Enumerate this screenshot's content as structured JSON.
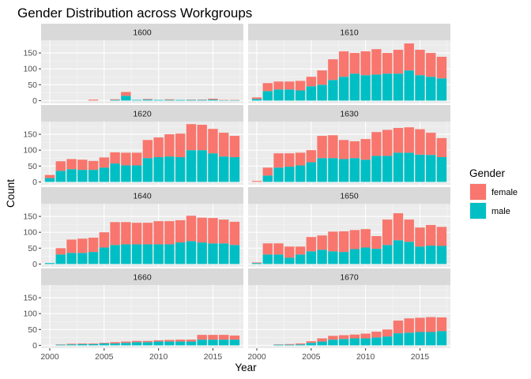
{
  "chart_data": {
    "type": "bar",
    "stacked": true,
    "title": "Gender Distribution across Workgroups",
    "xlabel": "Year",
    "ylabel": "Count",
    "x_ticks": [
      2000,
      2005,
      2010,
      2015
    ],
    "y_ticks": [
      0,
      50,
      100,
      150
    ],
    "xlim": [
      1999.2,
      2017.8
    ],
    "ylim": [
      -9,
      190
    ],
    "legend": {
      "title": "Gender",
      "position": "right",
      "entries": [
        {
          "name": "female",
          "color": "#F8766D"
        },
        {
          "name": "male",
          "color": "#00BFC4"
        }
      ]
    },
    "years": [
      2000,
      2001,
      2002,
      2003,
      2004,
      2005,
      2006,
      2007,
      2008,
      2009,
      2010,
      2011,
      2012,
      2013,
      2014,
      2015,
      2016,
      2017
    ],
    "panels": [
      {
        "name": "1600",
        "male": [
          0,
          0,
          0,
          0,
          0,
          0,
          2,
          15,
          2,
          3,
          2,
          2,
          2,
          2,
          2,
          3,
          1,
          1
        ],
        "female": [
          0,
          0,
          0,
          0,
          3,
          0,
          2,
          12,
          0,
          2,
          0,
          2,
          0,
          1,
          1,
          3,
          1,
          1
        ]
      },
      {
        "name": "1610",
        "male": [
          5,
          30,
          35,
          35,
          32,
          45,
          50,
          65,
          75,
          85,
          80,
          82,
          85,
          85,
          95,
          80,
          75,
          70
        ],
        "female": [
          5,
          25,
          25,
          25,
          30,
          30,
          45,
          65,
          80,
          65,
          75,
          80,
          65,
          75,
          85,
          80,
          75,
          68
        ]
      },
      {
        "name": "1620",
        "male": [
          12,
          35,
          40,
          38,
          38,
          45,
          58,
          52,
          52,
          75,
          78,
          80,
          78,
          100,
          100,
          90,
          80,
          78
        ],
        "female": [
          10,
          30,
          32,
          32,
          28,
          32,
          35,
          40,
          40,
          57,
          62,
          70,
          74,
          82,
          80,
          77,
          75,
          67
        ]
      },
      {
        "name": "1630",
        "male": [
          0,
          20,
          45,
          48,
          52,
          62,
          75,
          75,
          72,
          75,
          70,
          82,
          82,
          92,
          92,
          86,
          85,
          78
        ],
        "female": [
          3,
          25,
          45,
          42,
          40,
          38,
          70,
          72,
          60,
          53,
          65,
          75,
          82,
          78,
          80,
          80,
          70,
          60
        ]
      },
      {
        "name": "1640",
        "male": [
          3,
          30,
          35,
          35,
          38,
          52,
          60,
          62,
          62,
          62,
          62,
          62,
          68,
          72,
          68,
          65,
          65,
          60
        ],
        "female": [
          0,
          20,
          42,
          45,
          45,
          48,
          72,
          70,
          68,
          68,
          73,
          73,
          70,
          80,
          78,
          80,
          75,
          73
        ]
      },
      {
        "name": "1650",
        "male": [
          3,
          30,
          30,
          20,
          30,
          40,
          45,
          40,
          38,
          47,
          52,
          48,
          60,
          75,
          70,
          55,
          58,
          57
        ],
        "female": [
          2,
          35,
          35,
          35,
          25,
          45,
          45,
          62,
          65,
          60,
          58,
          40,
          80,
          85,
          70,
          60,
          65,
          60
        ]
      },
      {
        "name": "1660",
        "male": [
          0,
          2,
          3,
          4,
          4,
          6,
          6,
          8,
          10,
          10,
          12,
          12,
          12,
          12,
          18,
          18,
          18,
          18
        ],
        "female": [
          0,
          1,
          2,
          2,
          2,
          2,
          4,
          4,
          4,
          4,
          4,
          5,
          6,
          6,
          15,
          15,
          15,
          13
        ]
      },
      {
        "name": "1670",
        "male": [
          0,
          0,
          2,
          2,
          3,
          8,
          12,
          18,
          20,
          22,
          22,
          25,
          28,
          38,
          40,
          42,
          42,
          45
        ],
        "female": [
          0,
          0,
          1,
          2,
          3,
          5,
          10,
          12,
          12,
          12,
          15,
          18,
          22,
          40,
          45,
          45,
          47,
          43
        ]
      }
    ]
  }
}
